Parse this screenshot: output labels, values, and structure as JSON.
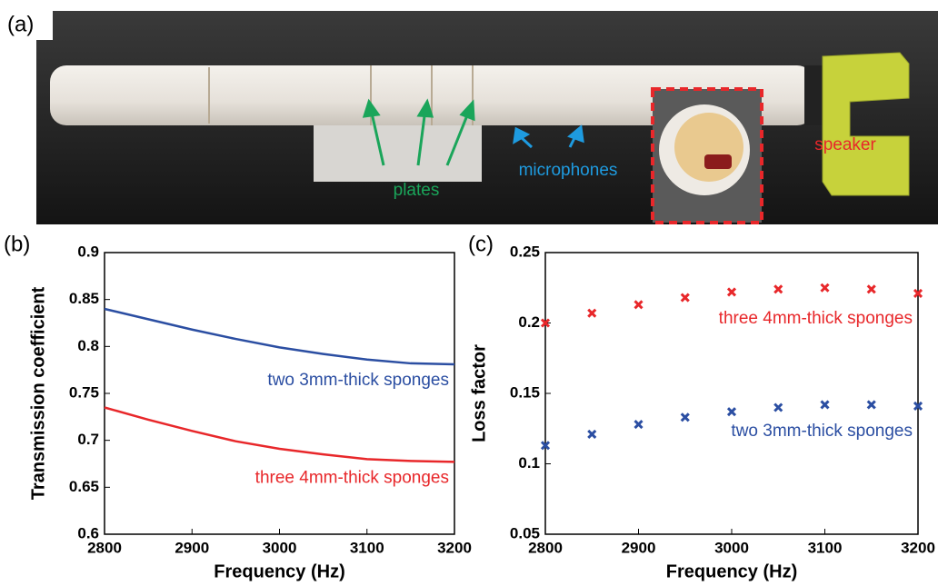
{
  "photo": {
    "panel_label": "(a)",
    "labels": [
      "plates",
      "microphones",
      "speaker"
    ]
  },
  "chart_data": [
    {
      "type": "line",
      "panel_label": "(b)",
      "x_label": "Frequency (Hz)",
      "y_label": "Transmission coefficient",
      "x": [
        2800,
        2850,
        2900,
        2950,
        3000,
        3050,
        3100,
        3150,
        3200
      ],
      "series": [
        {
          "name": "two 3mm-thick sponges",
          "color": "#2b4ea2",
          "values": [
            0.84,
            0.829,
            0.818,
            0.808,
            0.799,
            0.792,
            0.786,
            0.782,
            0.781
          ]
        },
        {
          "name": "three 4mm-thick sponges",
          "color": "#e8272a",
          "values": [
            0.735,
            0.722,
            0.71,
            0.699,
            0.691,
            0.685,
            0.68,
            0.678,
            0.677
          ]
        }
      ],
      "xlim": [
        2800,
        3200
      ],
      "xticks": [
        2800,
        2900,
        3000,
        3100,
        3200
      ],
      "ylim": [
        0.6,
        0.9
      ],
      "yticks": [
        0.6,
        0.65,
        0.7,
        0.75,
        0.8,
        0.85,
        0.9
      ],
      "grid": false
    },
    {
      "type": "scatter",
      "panel_label": "(c)",
      "x_label": "Frequency (Hz)",
      "y_label": "Loss factor",
      "x": [
        2800,
        2850,
        2900,
        2950,
        3000,
        3050,
        3100,
        3150,
        3200
      ],
      "series": [
        {
          "name": "three 4mm-thick sponges",
          "color": "#e8272a",
          "values": [
            0.2,
            0.207,
            0.213,
            0.218,
            0.222,
            0.224,
            0.225,
            0.224,
            0.221
          ]
        },
        {
          "name": "two 3mm-thick sponges",
          "color": "#2b4ea2",
          "values": [
            0.113,
            0.121,
            0.128,
            0.133,
            0.137,
            0.14,
            0.142,
            0.142,
            0.141
          ]
        }
      ],
      "xlim": [
        2800,
        3200
      ],
      "xticks": [
        2800,
        2900,
        3000,
        3100,
        3200
      ],
      "ylim": [
        0.05,
        0.25
      ],
      "yticks": [
        0.05,
        0.1,
        0.15,
        0.2,
        0.25
      ],
      "grid": false
    }
  ]
}
